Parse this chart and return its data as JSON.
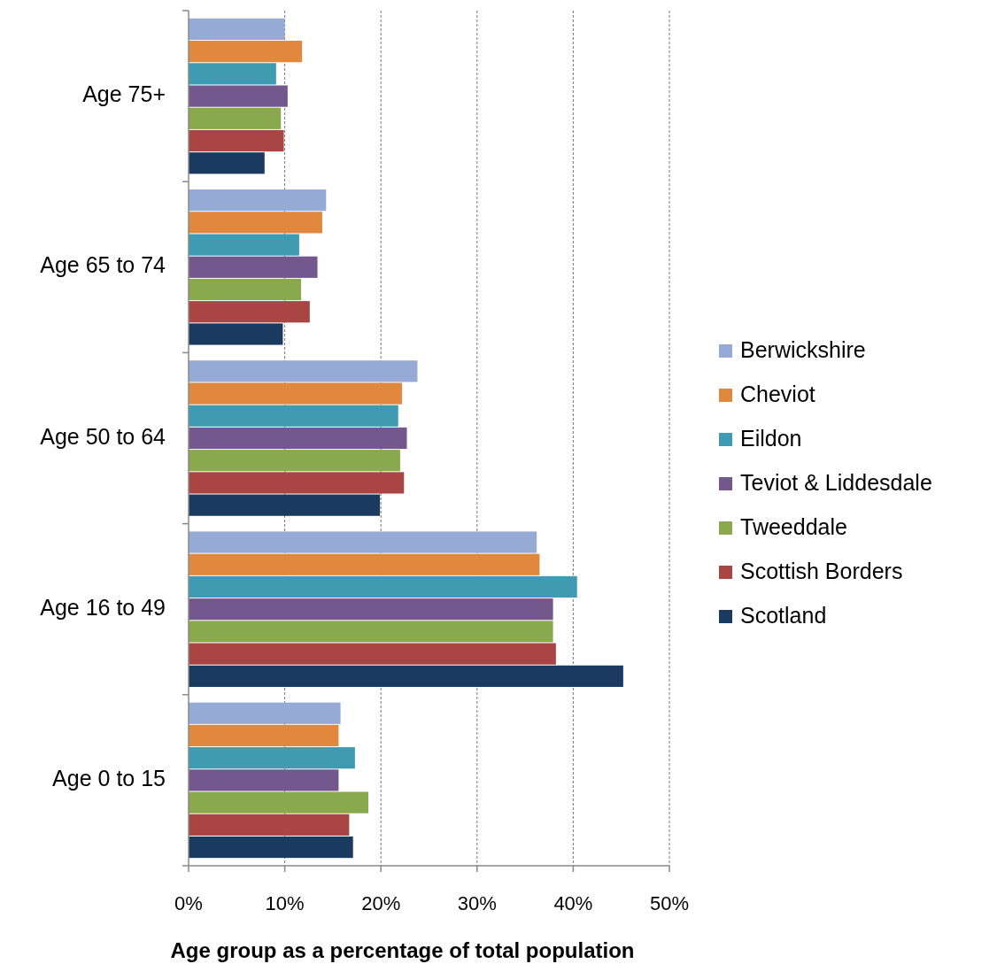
{
  "chart_data": {
    "type": "bar",
    "orientation": "horizontal",
    "xlabel": "Age group as a percentage of total population",
    "categories": [
      "Age 75+",
      "Age 65 to 74",
      "Age 50 to 64",
      "Age 16 to 49",
      "Age 0 to 15"
    ],
    "series": [
      {
        "name": "Berwickshire",
        "color": "#95abd5",
        "values": [
          10.0,
          14.3,
          23.8,
          36.2,
          15.8
        ]
      },
      {
        "name": "Cheviot",
        "color": "#e0883e",
        "values": [
          11.8,
          13.9,
          22.2,
          36.5,
          15.6
        ]
      },
      {
        "name": "Eildon",
        "color": "#3f9bb1",
        "values": [
          9.1,
          11.5,
          21.8,
          40.4,
          17.3
        ]
      },
      {
        "name": "Teviot & Liddesdale",
        "color": "#73588e",
        "values": [
          10.3,
          13.4,
          22.7,
          37.9,
          15.6
        ]
      },
      {
        "name": "Tweeddale",
        "color": "#8aa84c",
        "values": [
          9.6,
          11.7,
          22.0,
          37.9,
          18.7
        ]
      },
      {
        "name": "Scottish Borders",
        "color": "#a94543",
        "values": [
          9.9,
          12.6,
          22.4,
          38.2,
          16.7
        ]
      },
      {
        "name": "Scotland",
        "color": "#1b3a5f",
        "values": [
          7.9,
          9.8,
          19.9,
          45.2,
          17.1
        ]
      }
    ],
    "xlim": [
      0,
      50
    ],
    "xticks": [
      {
        "value": 0,
        "label": "0%"
      },
      {
        "value": 10,
        "label": "10%"
      },
      {
        "value": 20,
        "label": "20%"
      },
      {
        "value": 30,
        "label": "30%"
      },
      {
        "value": 40,
        "label": "40%"
      },
      {
        "value": 50,
        "label": "50%"
      }
    ],
    "grid": "x",
    "legend": "right"
  }
}
